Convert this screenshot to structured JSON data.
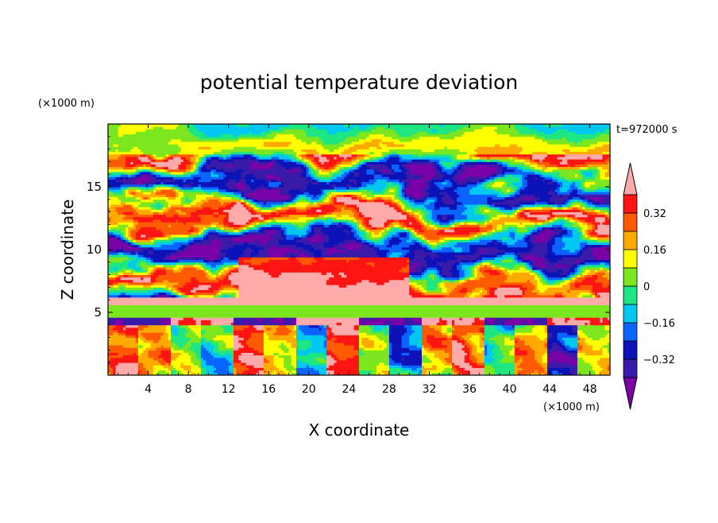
{
  "chart_data": {
    "type": "heatmap",
    "title": "potential temperature deviation",
    "xlabel": "X coordinate",
    "ylabel": "Z coordinate",
    "x_unit": "(×1000 m)",
    "y_unit": "(×1000 m)",
    "time_label": "t=972000 s",
    "xlim": [
      0,
      50
    ],
    "ylim": [
      0,
      20
    ],
    "x_ticks": [
      4,
      8,
      12,
      16,
      20,
      24,
      28,
      32,
      36,
      40,
      44,
      48
    ],
    "y_ticks": [
      5,
      10,
      15
    ],
    "colorbar": {
      "levels": [
        -0.4,
        -0.32,
        -0.24,
        -0.16,
        -0.08,
        0,
        0.08,
        0.16,
        0.24,
        0.32,
        0.4
      ],
      "colors": [
        "#7a00a8",
        "#3a1aa8",
        "#0a12b8",
        "#0a64ff",
        "#00c8f0",
        "#1ee682",
        "#7ce61e",
        "#ffff00",
        "#ffaa00",
        "#ff5a00",
        "#ff1414",
        "#ffaaaa"
      ],
      "tick_labels": [
        "0.32",
        "0.16",
        "0",
        "−0.16",
        "−0.32"
      ],
      "tick_values": [
        0.32,
        0.16,
        0,
        -0.16,
        -0.32
      ],
      "extend": "both"
    },
    "field_layers": [
      {
        "z_range": [
          0,
          4
        ],
        "description": "lower boundary layer: alternating vertical plumes",
        "values": [
          0.4,
          0.24,
          0.05,
          -0.08,
          0.3,
          0.12,
          -0.12,
          0.36,
          0.05,
          -0.2,
          0.15,
          0.32,
          -0.05,
          0.2,
          -0.32,
          0.1
        ]
      },
      {
        "z_range": [
          4,
          4.7
        ],
        "description": "thin layer",
        "values": [
          -0.4,
          0.4,
          -0.4,
          0.4,
          -0.4,
          0.4,
          -0.4,
          0.4
        ]
      },
      {
        "z_range": [
          4.7,
          5.6
        ],
        "description": "uniform band",
        "value": 0.05
      },
      {
        "z_range": [
          5.6,
          6.2
        ],
        "description": "warm stripe",
        "value": 0.4
      },
      {
        "z_range": [
          6.2,
          20
        ],
        "description": "upper turbulent layer with warm anomaly near x=13-30, z=6-9"
      }
    ]
  }
}
